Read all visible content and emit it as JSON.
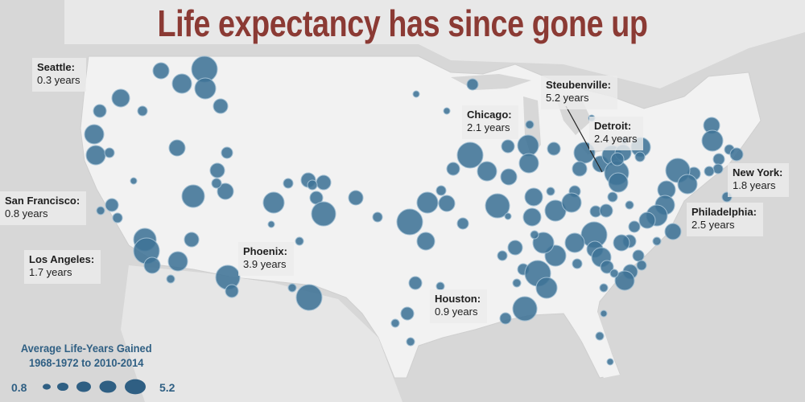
{
  "title": "Life expectancy has since gone up",
  "colors": {
    "bubble": "#3f7396",
    "bubble_stroke": "#9fbdd1",
    "land": "#f2f2f2",
    "water": "#d7d7d7",
    "title": "#8b3a34",
    "legend_text": "#2f5f83"
  },
  "city_labels": [
    {
      "id": "seattle",
      "name": "Seattle:",
      "value": "0.3 years"
    },
    {
      "id": "sf",
      "name": "San Francisco:",
      "value": "0.8 years"
    },
    {
      "id": "la",
      "name": "Los Angeles:",
      "value": "1.7 years"
    },
    {
      "id": "phoenix",
      "name": "Phoenix:",
      "value": "3.9 years"
    },
    {
      "id": "chicago",
      "name": "Chicago:",
      "value": "2.1 years"
    },
    {
      "id": "steubenville",
      "name": "Steubenville:",
      "value": "5.2 years"
    },
    {
      "id": "detroit",
      "name": "Detroit:",
      "value": "2.4 years"
    },
    {
      "id": "newyork",
      "name": "New York:",
      "value": "1.8 years"
    },
    {
      "id": "philadelphia",
      "name": "Philadelphia:",
      "value": "2.5 years"
    },
    {
      "id": "houston",
      "name": "Houston:",
      "value": "0.9 years"
    }
  ],
  "legend": {
    "title_line1": "Average Life-Years Gained",
    "title_line2": "1968-1972 to 2010-2014",
    "min_label": "0.8",
    "max_label": "5.2"
  }
}
